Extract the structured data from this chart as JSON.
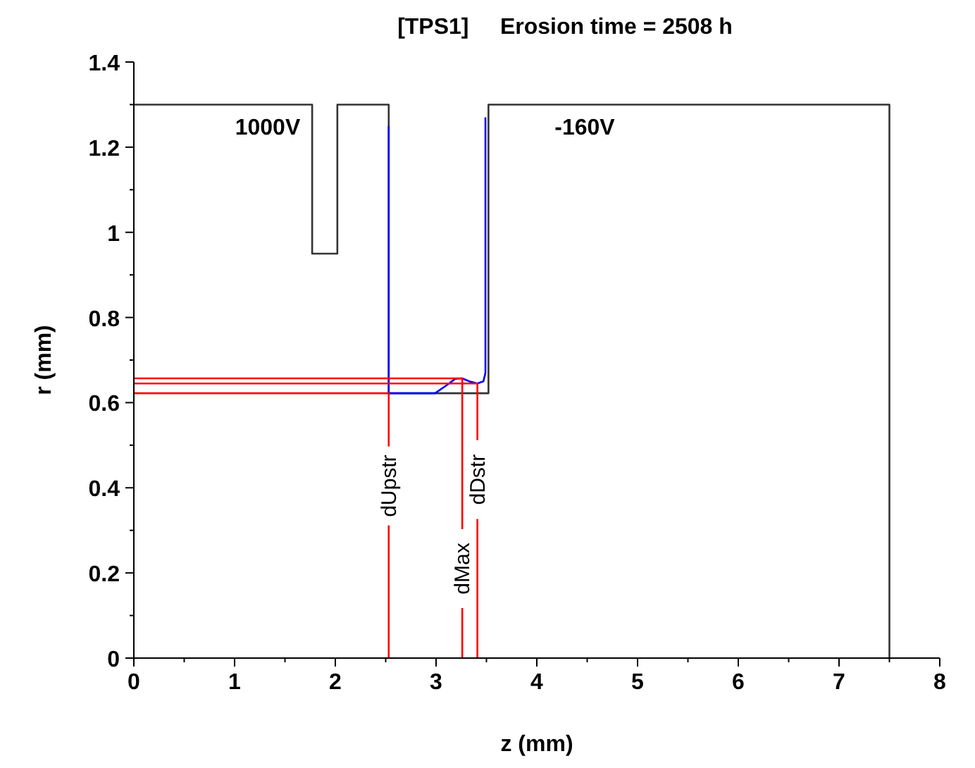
{
  "chart_data": {
    "type": "line",
    "title": "[TPS1]     Erosion time = 2508 h",
    "xlabel": "z (mm)",
    "ylabel": "r (mm)",
    "xlim": [
      0,
      8
    ],
    "ylim": [
      0,
      1.4
    ],
    "xticks": [
      0,
      {
        "value": 0.5,
        "label": null
      },
      1,
      {
        "value": 1.5,
        "label": null
      },
      2,
      {
        "value": 2.5,
        "label": null
      },
      3,
      {
        "value": 3.5,
        "label": null
      },
      4,
      {
        "value": 4.5,
        "label": null
      },
      5,
      {
        "value": 5.5,
        "label": null
      },
      6,
      {
        "value": 6.5,
        "label": null
      },
      7,
      {
        "value": 7.5,
        "label": null
      },
      8
    ],
    "yticks": [
      0,
      {
        "value": 0.1,
        "label": null
      },
      0.2,
      {
        "value": 0.3,
        "label": null
      },
      0.4,
      {
        "value": 0.5,
        "label": null
      },
      0.6,
      {
        "value": 0.7,
        "label": null
      },
      0.8,
      {
        "value": 0.9,
        "label": null
      },
      1,
      {
        "value": 1.1,
        "label": null
      },
      1.2,
      {
        "value": 1.3,
        "label": null
      },
      1.4
    ],
    "grid": false,
    "marker": "none",
    "line_style": "solid",
    "series": [
      {
        "color": "#333333",
        "x": [
          0,
          1.77,
          1.77,
          2.02,
          2.02,
          2.53,
          2.53,
          3.52,
          3.52,
          7.5,
          7.5
        ],
        "values": [
          1.3,
          1.3,
          0.95,
          0.95,
          1.3,
          1.3,
          0.622,
          0.622,
          1.3,
          1.3,
          0
        ]
      },
      {
        "color": "#0000ff",
        "x": [
          2.53,
          2.53,
          2.99,
          3.1,
          3.19,
          3.26,
          3.33,
          3.41,
          3.47,
          3.49,
          3.49
        ],
        "values": [
          1.25,
          0.622,
          0.622,
          0.64,
          0.656,
          0.657,
          0.65,
          0.645,
          0.65,
          0.67,
          1.27
        ]
      },
      {
        "name": "dUpstr",
        "color": "#ff0000",
        "x": [
          0,
          2.53,
          2.53
        ],
        "values": [
          0.622,
          0.622,
          0
        ]
      },
      {
        "name": "dMax",
        "color": "#ff0000",
        "x": [
          0,
          3.26,
          3.26
        ],
        "values": [
          0.657,
          0.657,
          0
        ]
      },
      {
        "name": "dDstr",
        "color": "#ff0000",
        "x": [
          0,
          3.41,
          3.41
        ],
        "values": [
          0.645,
          0.645,
          0
        ]
      }
    ],
    "annotations": [
      "1000V",
      "-160V"
    ]
  }
}
